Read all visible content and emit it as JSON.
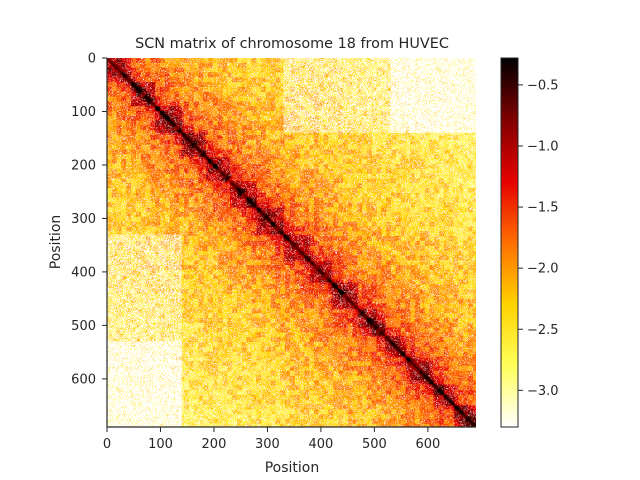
{
  "chart_data": {
    "type": "heatmap",
    "title": "SCN matrix of chromosome 18 from HUVEC",
    "xlabel": "Position",
    "ylabel": "Position",
    "matrix_size": 690,
    "xlim": [
      0,
      690
    ],
    "ylim": [
      690,
      0
    ],
    "xticks": [
      0,
      100,
      200,
      300,
      400,
      500,
      600
    ],
    "yticks": [
      0,
      100,
      200,
      300,
      400,
      500,
      600
    ],
    "colormap": "hot_r",
    "colorbar": {
      "range": [
        -3.3,
        -0.28
      ],
      "ticks": [
        -0.5,
        -1.0,
        -1.5,
        -2.0,
        -2.5,
        -3.0
      ],
      "tick_labels": [
        "−0.5",
        "−1.0",
        "−1.5",
        "−2.0",
        "−2.5",
        "−3.0"
      ],
      "colors": [
        "#ffffff",
        "#ffff5a",
        "#ffd200",
        "#ff6e00",
        "#e60000",
        "#800000",
        "#000000"
      ]
    },
    "structure": {
      "description": "log-scaled normalized contact matrix, strongest values along the main diagonal",
      "diagonal_value": -0.6,
      "low_value_regions": [
        {
          "rows": [
            0,
            140
          ],
          "cols": [
            330,
            690
          ],
          "level": "sparse"
        },
        {
          "rows": [
            330,
            690
          ],
          "cols": [
            0,
            140
          ],
          "level": "sparse"
        },
        {
          "rows": [
            0,
            140
          ],
          "cols": [
            530,
            690
          ],
          "level": "mostly-empty"
        },
        {
          "rows": [
            530,
            690
          ],
          "cols": [
            0,
            140
          ],
          "level": "mostly-empty"
        }
      ],
      "domain_boundaries": [
        0,
        45,
        90,
        140,
        185,
        230,
        280,
        330,
        380,
        420,
        470,
        520,
        560,
        610,
        650,
        690
      ]
    }
  }
}
